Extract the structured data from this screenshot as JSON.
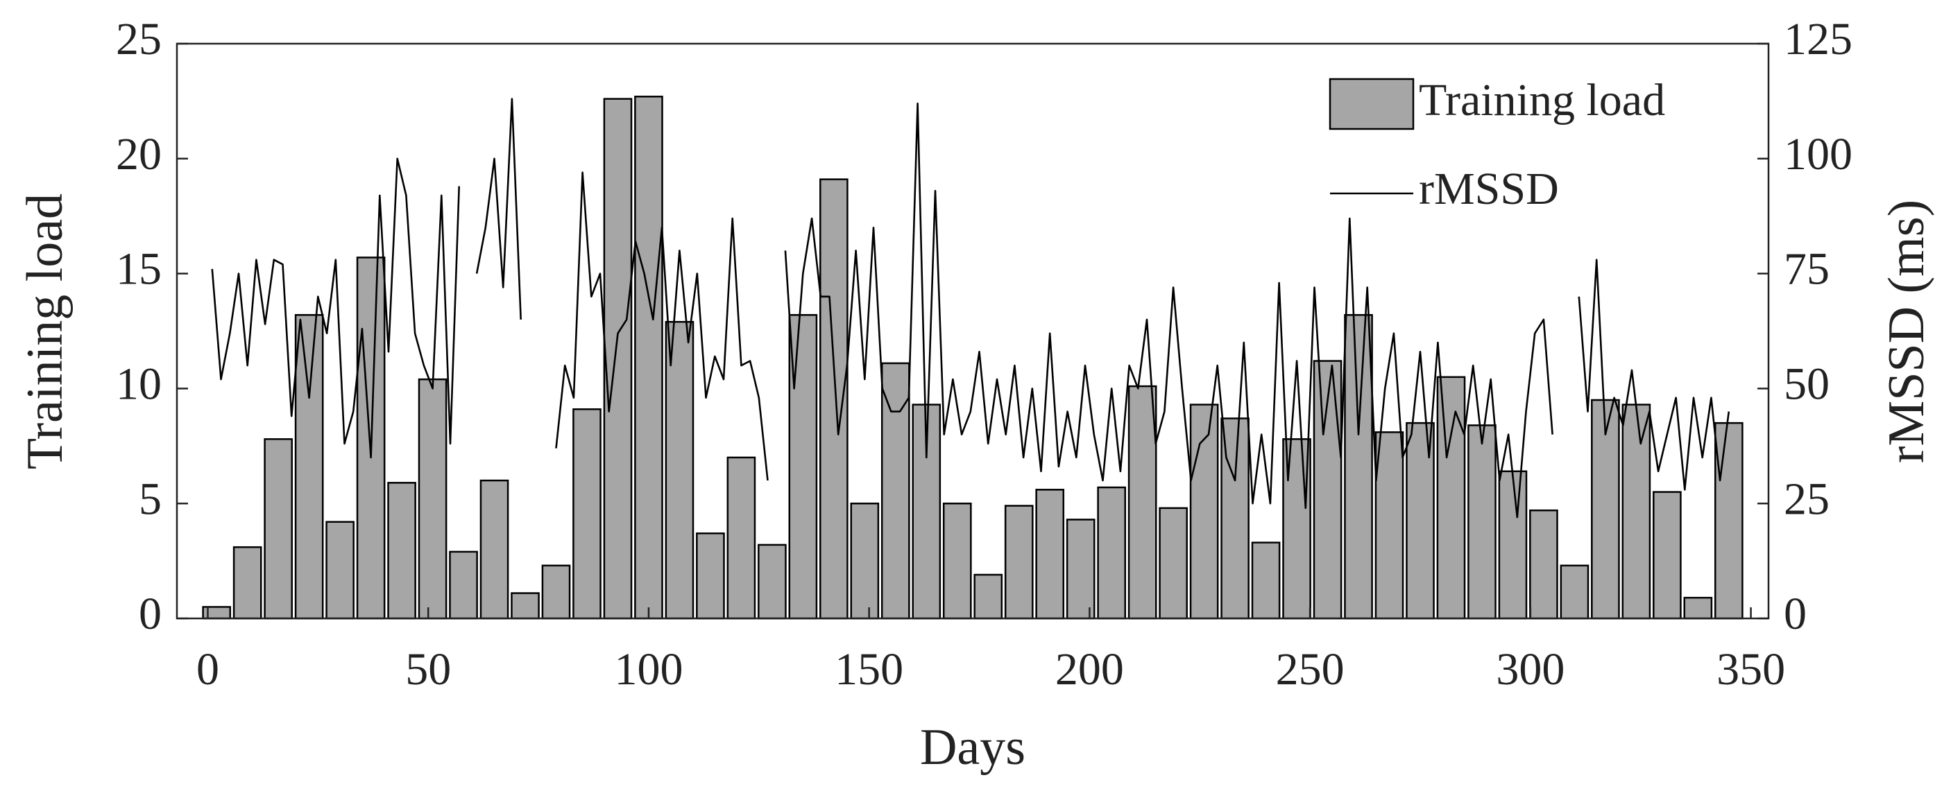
{
  "chart_data": {
    "type": "bar_line",
    "xlabel": "Days",
    "ylabel": "Training load",
    "y2label": "rMSSD (ms)",
    "xlim": [
      -7,
      354
    ],
    "xticks": [
      0,
      50,
      100,
      150,
      200,
      250,
      300,
      350
    ],
    "ylim": [
      0,
      25
    ],
    "yticks": [
      0,
      5,
      10,
      15,
      20,
      25
    ],
    "y2lim": [
      0,
      125
    ],
    "y2ticks": [
      0,
      25,
      50,
      75,
      100,
      125
    ],
    "legend": "upper right",
    "series": [
      {
        "name": "Training load",
        "type": "bar",
        "color": "#a6a6a6",
        "x": [
          2,
          9,
          16,
          23,
          30,
          37,
          44,
          51,
          58,
          65,
          72,
          79,
          86,
          93,
          100,
          107,
          114,
          121,
          128,
          135,
          142,
          149,
          156,
          163,
          170,
          177,
          184,
          191,
          198,
          205,
          212,
          219,
          226,
          233,
          240,
          247,
          254,
          261,
          268,
          275,
          282,
          289,
          296,
          303,
          310,
          317,
          324,
          331,
          338,
          345
        ],
        "values": [
          0.5,
          3.1,
          7.8,
          13.2,
          4.2,
          15.7,
          5.9,
          10.4,
          2.9,
          6.0,
          1.1,
          2.3,
          9.1,
          22.6,
          22.7,
          12.9,
          3.7,
          7.0,
          3.2,
          13.2,
          19.1,
          5.0,
          11.1,
          9.3,
          5.0,
          1.9,
          4.9,
          5.6,
          4.3,
          5.7,
          10.1,
          4.8,
          9.3,
          8.7,
          3.3,
          7.8,
          11.2,
          13.2,
          8.1,
          8.5,
          10.5,
          8.4,
          6.4,
          4.7,
          2.3,
          9.5,
          9.3,
          5.5,
          0.9,
          8.5
        ]
      },
      {
        "name": "rMSSD",
        "type": "line",
        "axis": "y2",
        "color": "#000000",
        "x": [
          1,
          3,
          5,
          7,
          9,
          11,
          13,
          15,
          17,
          19,
          21,
          23,
          25,
          27,
          29,
          31,
          33,
          35,
          37,
          39,
          41,
          43,
          45,
          47,
          49,
          51,
          53,
          55,
          57,
          59,
          61,
          63,
          65,
          67,
          69,
          71,
          73,
          75,
          77,
          79,
          81,
          83,
          85,
          87,
          89,
          91,
          93,
          95,
          97,
          99,
          101,
          103,
          105,
          107,
          109,
          111,
          113,
          115,
          117,
          119,
          121,
          123,
          125,
          127,
          129,
          131,
          133,
          135,
          137,
          139,
          141,
          143,
          145,
          147,
          149,
          151,
          153,
          155,
          157,
          159,
          161,
          163,
          165,
          167,
          169,
          171,
          173,
          175,
          177,
          179,
          181,
          183,
          185,
          187,
          189,
          191,
          193,
          195,
          197,
          199,
          201,
          203,
          205,
          207,
          209,
          211,
          213,
          215,
          217,
          219,
          221,
          223,
          225,
          227,
          229,
          231,
          233,
          235,
          237,
          239,
          241,
          243,
          245,
          247,
          249,
          251,
          253,
          255,
          257,
          259,
          261,
          263,
          265,
          267,
          269,
          271,
          273,
          275,
          277,
          279,
          281,
          283,
          285,
          287,
          289,
          291,
          293,
          295,
          297,
          299,
          301,
          303,
          305,
          307,
          309,
          311,
          313,
          315,
          317,
          319,
          321,
          323,
          325,
          327,
          329,
          331,
          333,
          335,
          337,
          339,
          341,
          343,
          345
        ],
        "values": [
          76,
          52,
          62,
          75,
          55,
          78,
          64,
          78,
          77,
          44,
          65,
          48,
          70,
          62,
          78,
          38,
          45,
          63,
          35,
          92,
          58,
          100,
          92,
          62,
          55,
          50,
          92,
          38,
          94,
          null,
          75,
          85,
          100,
          72,
          113,
          65,
          null,
          null,
          null,
          37,
          55,
          48,
          97,
          70,
          75,
          45,
          62,
          65,
          82,
          75,
          65,
          85,
          55,
          80,
          60,
          75,
          48,
          57,
          52,
          87,
          55,
          56,
          48,
          30,
          null,
          80,
          50,
          75,
          87,
          70,
          70,
          40,
          55,
          80,
          52,
          85,
          50,
          45,
          45,
          48,
          112,
          35,
          93,
          40,
          52,
          40,
          45,
          58,
          38,
          52,
          40,
          55,
          35,
          50,
          32,
          62,
          33,
          45,
          35,
          55,
          40,
          30,
          50,
          32,
          55,
          50,
          65,
          38,
          45,
          72,
          50,
          30,
          38,
          40,
          55,
          35,
          30,
          60,
          25,
          40,
          25,
          73,
          30,
          56,
          24,
          72,
          40,
          55,
          35,
          87,
          40,
          72,
          30,
          50,
          62,
          35,
          40,
          58,
          35,
          60,
          35,
          45,
          40,
          55,
          38,
          52,
          30,
          40,
          22,
          45,
          62,
          65,
          40,
          null,
          null,
          70,
          45,
          78,
          40,
          48,
          42,
          54,
          38,
          45,
          32,
          40,
          48,
          28,
          48,
          35,
          48,
          30,
          45
        ]
      }
    ]
  }
}
